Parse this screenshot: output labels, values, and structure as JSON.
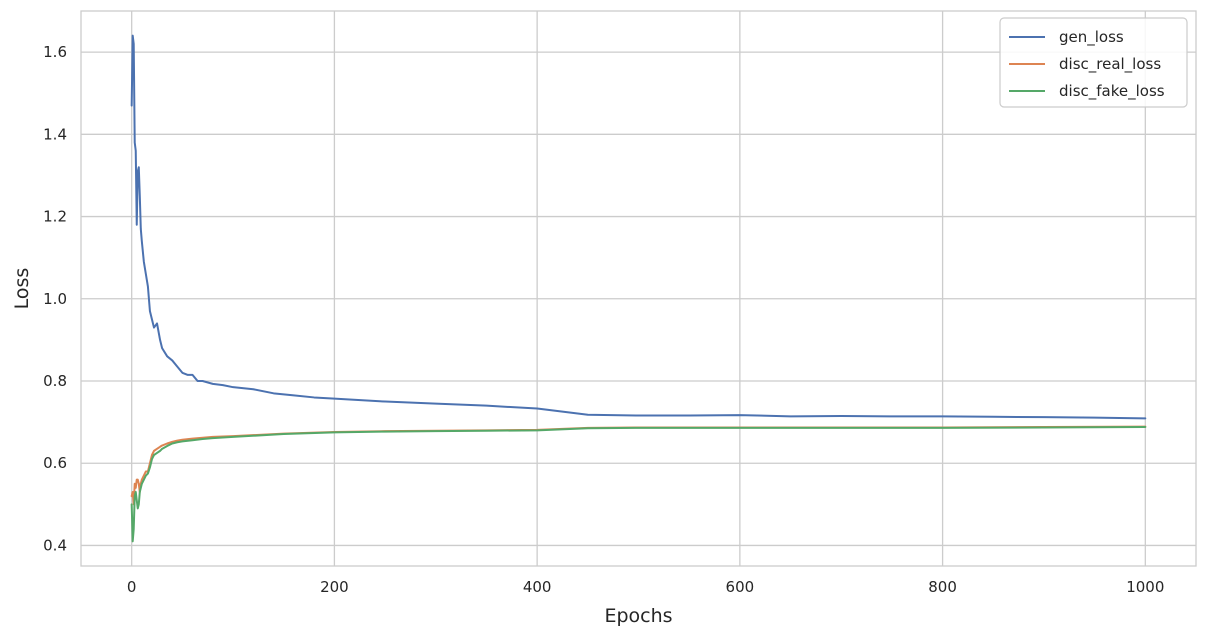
{
  "chart_data": {
    "type": "line",
    "title": "",
    "xlabel": "Epochs",
    "ylabel": "Loss",
    "xlim": [
      -50,
      1050
    ],
    "ylim": [
      0.35,
      1.7
    ],
    "xticks": [
      0,
      200,
      400,
      600,
      800,
      1000
    ],
    "xtick_labels": [
      "0",
      "200",
      "400",
      "600",
      "800",
      "1000"
    ],
    "yticks": [
      0.4,
      0.6,
      0.8,
      1.0,
      1.2,
      1.4,
      1.6
    ],
    "ytick_labels": [
      "0.4",
      "0.6",
      "0.8",
      "1.0",
      "1.2",
      "1.4",
      "1.6"
    ],
    "grid": true,
    "legend_position": "top-right",
    "series": [
      {
        "name": "gen_loss",
        "color": "#4c72b0",
        "x": [
          0,
          1,
          2,
          3,
          4,
          5,
          6,
          7,
          8,
          9,
          10,
          12,
          14,
          16,
          18,
          20,
          22,
          25,
          28,
          30,
          35,
          40,
          45,
          50,
          55,
          60,
          65,
          70,
          80,
          90,
          100,
          120,
          140,
          160,
          180,
          200,
          250,
          300,
          350,
          400,
          450,
          500,
          550,
          600,
          650,
          700,
          750,
          800,
          850,
          900,
          950,
          1000
        ],
        "y": [
          1.47,
          1.64,
          1.62,
          1.38,
          1.36,
          1.18,
          1.31,
          1.32,
          1.25,
          1.17,
          1.14,
          1.09,
          1.06,
          1.03,
          0.97,
          0.95,
          0.93,
          0.94,
          0.9,
          0.88,
          0.86,
          0.85,
          0.835,
          0.82,
          0.815,
          0.815,
          0.8,
          0.8,
          0.793,
          0.79,
          0.785,
          0.78,
          0.77,
          0.765,
          0.76,
          0.757,
          0.75,
          0.745,
          0.74,
          0.733,
          0.718,
          0.716,
          0.716,
          0.717,
          0.714,
          0.715,
          0.714,
          0.714,
          0.713,
          0.712,
          0.711,
          0.709
        ]
      },
      {
        "name": "disc_real_loss",
        "color": "#dd8452",
        "x": [
          0,
          1,
          2,
          3,
          4,
          5,
          6,
          7,
          8,
          9,
          10,
          12,
          14,
          16,
          18,
          20,
          22,
          25,
          28,
          30,
          35,
          40,
          45,
          50,
          60,
          70,
          80,
          100,
          150,
          200,
          250,
          300,
          350,
          400,
          450,
          500,
          600,
          700,
          800,
          900,
          1000
        ],
        "y": [
          0.52,
          0.53,
          0.5,
          0.55,
          0.54,
          0.56,
          0.56,
          0.55,
          0.53,
          0.55,
          0.56,
          0.57,
          0.58,
          0.58,
          0.6,
          0.62,
          0.63,
          0.635,
          0.64,
          0.643,
          0.648,
          0.652,
          0.655,
          0.657,
          0.66,
          0.662,
          0.664,
          0.666,
          0.672,
          0.676,
          0.678,
          0.679,
          0.68,
          0.681,
          0.686,
          0.687,
          0.687,
          0.687,
          0.687,
          0.688,
          0.689
        ]
      },
      {
        "name": "disc_fake_loss",
        "color": "#55a868",
        "x": [
          0,
          1,
          2,
          3,
          4,
          5,
          6,
          7,
          8,
          9,
          10,
          12,
          14,
          16,
          18,
          20,
          22,
          25,
          28,
          30,
          35,
          40,
          45,
          50,
          60,
          70,
          80,
          100,
          150,
          200,
          250,
          300,
          350,
          400,
          450,
          500,
          600,
          700,
          800,
          900,
          1000
        ],
        "y": [
          0.5,
          0.41,
          0.44,
          0.52,
          0.53,
          0.51,
          0.49,
          0.5,
          0.53,
          0.54,
          0.55,
          0.56,
          0.57,
          0.575,
          0.59,
          0.61,
          0.62,
          0.625,
          0.63,
          0.635,
          0.642,
          0.648,
          0.651,
          0.653,
          0.656,
          0.659,
          0.661,
          0.664,
          0.671,
          0.675,
          0.677,
          0.678,
          0.679,
          0.68,
          0.685,
          0.686,
          0.686,
          0.686,
          0.686,
          0.687,
          0.688
        ]
      }
    ]
  }
}
